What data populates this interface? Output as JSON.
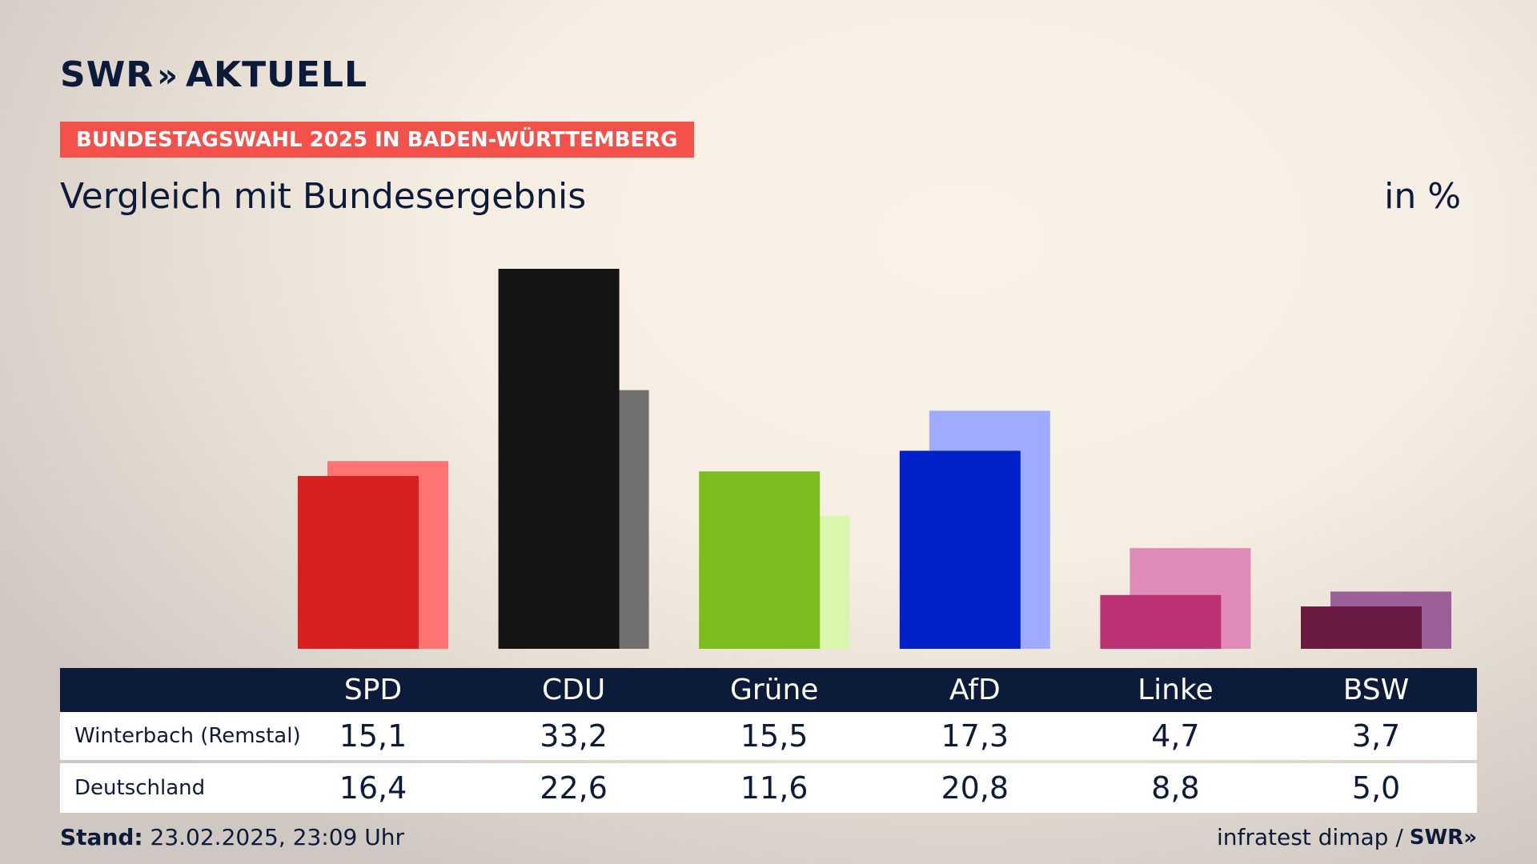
{
  "brand": {
    "logo_text": "SWR",
    "logo_chevrons": "»",
    "logo_suffix": "AKTUELL"
  },
  "subtitle_badge": "BUNDESTAGSWAHL 2025 IN BADEN-WÜRTTEMBERG",
  "unit": "in %",
  "colors": {
    "navy": "#0c1b3a",
    "badge": "#f4514a"
  },
  "chart_data": {
    "type": "bar",
    "title": "Vergleich mit Bundesergebnis",
    "categories": [
      "SPD",
      "CDU",
      "Grüne",
      "AfD",
      "Linke",
      "BSW"
    ],
    "series": [
      {
        "name": "Winterbach (Remstal)",
        "values": [
          15.1,
          33.2,
          15.5,
          17.3,
          4.7,
          3.7
        ],
        "labels": [
          "15,1",
          "33,2",
          "15,5",
          "17,3",
          "4,7",
          "3,7"
        ],
        "colors": [
          "#d7201f",
          "#141414",
          "#7abd1d",
          "#0020c9",
          "#bc3174",
          "#6a1a41"
        ]
      },
      {
        "name": "Deutschland",
        "values": [
          16.4,
          22.6,
          11.6,
          20.8,
          8.8,
          5.0
        ],
        "labels": [
          "16,4",
          "22,6",
          "11,6",
          "20,8",
          "8,8",
          "5,0"
        ],
        "colors": [
          "#ff7472",
          "#737170",
          "#d8f6ac",
          "#9eabff",
          "#e08ab7",
          "#9b609a"
        ]
      }
    ],
    "ylim": [
      0,
      33.2
    ]
  },
  "footer": {
    "stand_label": "Stand:",
    "stand_value": " 23.02.2025, 23:09 Uhr",
    "source": "infratest dimap /",
    "source_logo": "SWR»"
  }
}
